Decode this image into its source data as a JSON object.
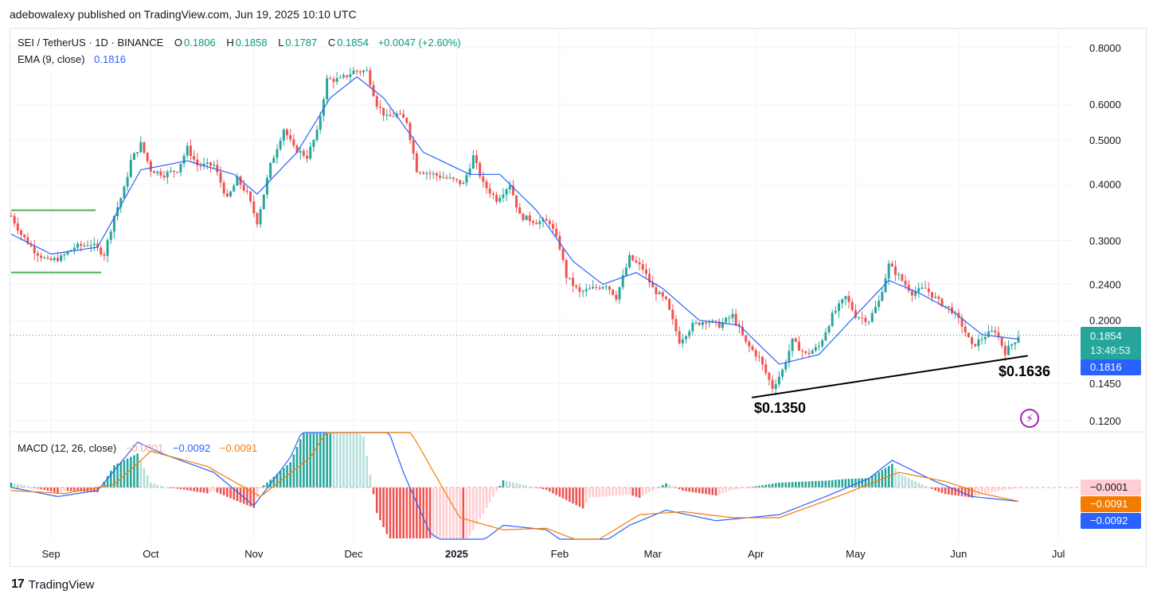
{
  "header": {
    "caption": "adebowalexy published on TradingView.com, Jun 19, 2025 10:10 UTC"
  },
  "legend": {
    "symbol": "SEI / TetherUS · 1D · BINANCE",
    "o_key": "O",
    "o_val": "0.1806",
    "h_key": "H",
    "h_val": "0.1858",
    "l_key": "L",
    "l_val": "0.1787",
    "c_key": "C",
    "c_val": "0.1854",
    "change": "+0.0047 (+2.60%)",
    "ema_label": "EMA (9, close)",
    "ema_val": "0.1816",
    "macd_label": "MACD (12, 26, close)",
    "macd_hist_val": "−0.0001",
    "macd_val": "−0.0092",
    "macd_signal_val": "−0.0091"
  },
  "price_tags": {
    "last": "0.1854",
    "countdown": "13:49:53",
    "ema": "0.1816",
    "macd_hist": "−0.0001",
    "macd_signal": "−0.0091",
    "macd": "−0.0092"
  },
  "annotations": {
    "low1": "$0.1350",
    "low2": "$0.1636"
  },
  "footer": {
    "brand": "TradingView"
  },
  "icons": [
    "tradingview-logo-icon",
    "flash-icon"
  ],
  "colors": {
    "up": "#26a69a",
    "down": "#ef5350",
    "ema": "#2962ff",
    "signal": "#f57c00",
    "hist_up": "#26a69a",
    "hist_up_weak": "#b2dfdb",
    "hist_down": "#ef5350",
    "hist_down_weak": "#ffcdd2",
    "support": "#4caf50",
    "trendline": "#000000"
  },
  "chart_data": [
    {
      "type": "candlestick",
      "title": "SEI / TetherUS · 1D · BINANCE",
      "y_scale": "log",
      "y_ticks": [
        0.8,
        0.6,
        0.5,
        0.4,
        0.3,
        0.24,
        0.2,
        0.145,
        0.12
      ],
      "x_ticks": [
        "Sep",
        "Oct",
        "Nov",
        "Dec",
        "2025",
        "Feb",
        "Mar",
        "Apr",
        "May",
        "Jun",
        "Jul"
      ],
      "x_range": [
        "2024-08-20",
        "2025-07-06"
      ],
      "grid": true,
      "closes_approx": [
        [
          "2024-08-20",
          0.34
        ],
        [
          "2024-08-23",
          0.31
        ],
        [
          "2024-08-27",
          0.285
        ],
        [
          "2024-08-31",
          0.27
        ],
        [
          "2024-09-04",
          0.275
        ],
        [
          "2024-09-08",
          0.29
        ],
        [
          "2024-09-13",
          0.295
        ],
        [
          "2024-09-17",
          0.28
        ],
        [
          "2024-09-20",
          0.34
        ],
        [
          "2024-09-23",
          0.39
        ],
        [
          "2024-09-25",
          0.45
        ],
        [
          "2024-09-28",
          0.49
        ],
        [
          "2024-10-01",
          0.43
        ],
        [
          "2024-10-05",
          0.42
        ],
        [
          "2024-10-09",
          0.43
        ],
        [
          "2024-10-12",
          0.48
        ],
        [
          "2024-10-15",
          0.44
        ],
        [
          "2024-10-20",
          0.44
        ],
        [
          "2024-10-24",
          0.37
        ],
        [
          "2024-10-27",
          0.41
        ],
        [
          "2024-10-30",
          0.38
        ],
        [
          "2024-11-02",
          0.33
        ],
        [
          "2024-11-06",
          0.44
        ],
        [
          "2024-11-10",
          0.53
        ],
        [
          "2024-11-13",
          0.48
        ],
        [
          "2024-11-17",
          0.46
        ],
        [
          "2024-11-20",
          0.52
        ],
        [
          "2024-11-23",
          0.68
        ],
        [
          "2024-11-27",
          0.68
        ],
        [
          "2024-12-01",
          0.71
        ],
        [
          "2024-12-05",
          0.71
        ],
        [
          "2024-12-08",
          0.6
        ],
        [
          "2024-12-11",
          0.56
        ],
        [
          "2024-12-14",
          0.57
        ],
        [
          "2024-12-17",
          0.55
        ],
        [
          "2024-12-20",
          0.43
        ],
        [
          "2024-12-25",
          0.42
        ],
        [
          "2024-12-30",
          0.41
        ],
        [
          "2025-01-03",
          0.4
        ],
        [
          "2025-01-06",
          0.46
        ],
        [
          "2025-01-09",
          0.4
        ],
        [
          "2025-01-13",
          0.37
        ],
        [
          "2025-01-17",
          0.4
        ],
        [
          "2025-01-20",
          0.34
        ],
        [
          "2025-01-25",
          0.33
        ],
        [
          "2025-01-29",
          0.33
        ],
        [
          "2025-02-01",
          0.29
        ],
        [
          "2025-02-03",
          0.25
        ],
        [
          "2025-02-07",
          0.23
        ],
        [
          "2025-02-11",
          0.235
        ],
        [
          "2025-02-15",
          0.24
        ],
        [
          "2025-02-18",
          0.225
        ],
        [
          "2025-02-22",
          0.275
        ],
        [
          "2025-02-26",
          0.26
        ],
        [
          "2025-03-01",
          0.235
        ],
        [
          "2025-03-05",
          0.22
        ],
        [
          "2025-03-09",
          0.18
        ],
        [
          "2025-03-13",
          0.195
        ],
        [
          "2025-03-17",
          0.2
        ],
        [
          "2025-03-21",
          0.195
        ],
        [
          "2025-03-25",
          0.205
        ],
        [
          "2025-03-29",
          0.178
        ],
        [
          "2025-04-02",
          0.165
        ],
        [
          "2025-04-06",
          0.142
        ],
        [
          "2025-04-09",
          0.155
        ],
        [
          "2025-04-12",
          0.18
        ],
        [
          "2025-04-16",
          0.168
        ],
        [
          "2025-04-20",
          0.175
        ],
        [
          "2025-04-24",
          0.205
        ],
        [
          "2025-04-28",
          0.225
        ],
        [
          "2025-05-01",
          0.205
        ],
        [
          "2025-05-05",
          0.2
        ],
        [
          "2025-05-08",
          0.22
        ],
        [
          "2025-05-11",
          0.265
        ],
        [
          "2025-05-14",
          0.25
        ],
        [
          "2025-05-18",
          0.23
        ],
        [
          "2025-05-22",
          0.235
        ],
        [
          "2025-05-26",
          0.22
        ],
        [
          "2025-05-30",
          0.21
        ],
        [
          "2025-06-02",
          0.195
        ],
        [
          "2025-06-05",
          0.175
        ],
        [
          "2025-06-09",
          0.185
        ],
        [
          "2025-06-12",
          0.19
        ],
        [
          "2025-06-15",
          0.17
        ],
        [
          "2025-06-18",
          0.1807
        ],
        [
          "2025-06-19",
          0.1854
        ]
      ],
      "ema_approx": [
        [
          "2024-08-20",
          0.31
        ],
        [
          "2024-09-01",
          0.28
        ],
        [
          "2024-09-15",
          0.29
        ],
        [
          "2024-09-28",
          0.43
        ],
        [
          "2024-10-12",
          0.45
        ],
        [
          "2024-10-26",
          0.42
        ],
        [
          "2024-11-02",
          0.38
        ],
        [
          "2024-11-14",
          0.47
        ],
        [
          "2024-11-24",
          0.62
        ],
        [
          "2024-12-02",
          0.69
        ],
        [
          "2024-12-10",
          0.62
        ],
        [
          "2024-12-22",
          0.47
        ],
        [
          "2025-01-05",
          0.42
        ],
        [
          "2025-01-14",
          0.42
        ],
        [
          "2025-01-25",
          0.35
        ],
        [
          "2025-02-05",
          0.27
        ],
        [
          "2025-02-14",
          0.24
        ],
        [
          "2025-02-24",
          0.255
        ],
        [
          "2025-03-04",
          0.235
        ],
        [
          "2025-03-15",
          0.2
        ],
        [
          "2025-03-27",
          0.195
        ],
        [
          "2025-04-08",
          0.16
        ],
        [
          "2025-04-20",
          0.168
        ],
        [
          "2025-05-01",
          0.205
        ],
        [
          "2025-05-11",
          0.245
        ],
        [
          "2025-05-20",
          0.23
        ],
        [
          "2025-05-30",
          0.21
        ],
        [
          "2025-06-08",
          0.186
        ],
        [
          "2025-06-19",
          0.1816
        ]
      ],
      "annotations": [
        {
          "label": "$0.1350",
          "date": "2025-04-07",
          "price": 0.135
        },
        {
          "label": "$0.1636",
          "date": "2025-06-17",
          "price": 0.1636
        }
      ]
    },
    {
      "type": "macd",
      "title": "MACD (12, 26, close)",
      "values": {
        "histogram": -0.0001,
        "macd": -0.0092,
        "signal": -0.0091
      },
      "macd_approx": [
        [
          "2024-08-20",
          0.0
        ],
        [
          "2024-09-03",
          -0.006
        ],
        [
          "2024-09-15",
          -0.002
        ],
        [
          "2024-09-27",
          0.03
        ],
        [
          "2024-10-05",
          0.022
        ],
        [
          "2024-10-20",
          0.01
        ],
        [
          "2024-11-01",
          -0.012
        ],
        [
          "2024-11-12",
          0.02
        ],
        [
          "2024-11-24",
          0.08
        ],
        [
          "2024-12-04",
          0.085
        ],
        [
          "2024-12-16",
          0.01
        ],
        [
          "2024-12-24",
          -0.03
        ],
        [
          "2025-01-03",
          -0.045
        ],
        [
          "2025-01-15",
          -0.025
        ],
        [
          "2025-01-28",
          -0.028
        ],
        [
          "2025-02-08",
          -0.045
        ],
        [
          "2025-02-22",
          -0.025
        ],
        [
          "2025-03-05",
          -0.015
        ],
        [
          "2025-03-20",
          -0.022
        ],
        [
          "2025-04-08",
          -0.018
        ],
        [
          "2025-04-22",
          -0.006
        ],
        [
          "2025-05-05",
          0.006
        ],
        [
          "2025-05-12",
          0.018
        ],
        [
          "2025-05-25",
          0.004
        ],
        [
          "2025-06-05",
          -0.006
        ],
        [
          "2025-06-19",
          -0.0092
        ]
      ],
      "signal_approx": [
        [
          "2024-08-20",
          -0.002
        ],
        [
          "2024-09-05",
          -0.004
        ],
        [
          "2024-09-20",
          0.002
        ],
        [
          "2024-10-01",
          0.024
        ],
        [
          "2024-10-18",
          0.014
        ],
        [
          "2024-11-03",
          -0.006
        ],
        [
          "2024-11-18",
          0.02
        ],
        [
          "2024-11-28",
          0.055
        ],
        [
          "2024-12-08",
          0.07
        ],
        [
          "2024-12-20",
          0.03
        ],
        [
          "2025-01-02",
          -0.02
        ],
        [
          "2025-01-15",
          -0.028
        ],
        [
          "2025-01-28",
          -0.027
        ],
        [
          "2025-02-10",
          -0.038
        ],
        [
          "2025-02-25",
          -0.018
        ],
        [
          "2025-03-10",
          -0.016
        ],
        [
          "2025-03-25",
          -0.02
        ],
        [
          "2025-04-08",
          -0.02
        ],
        [
          "2025-04-28",
          -0.004
        ],
        [
          "2025-05-14",
          0.01
        ],
        [
          "2025-05-28",
          0.004
        ],
        [
          "2025-06-08",
          -0.004
        ],
        [
          "2025-06-19",
          -0.0091
        ]
      ]
    }
  ]
}
